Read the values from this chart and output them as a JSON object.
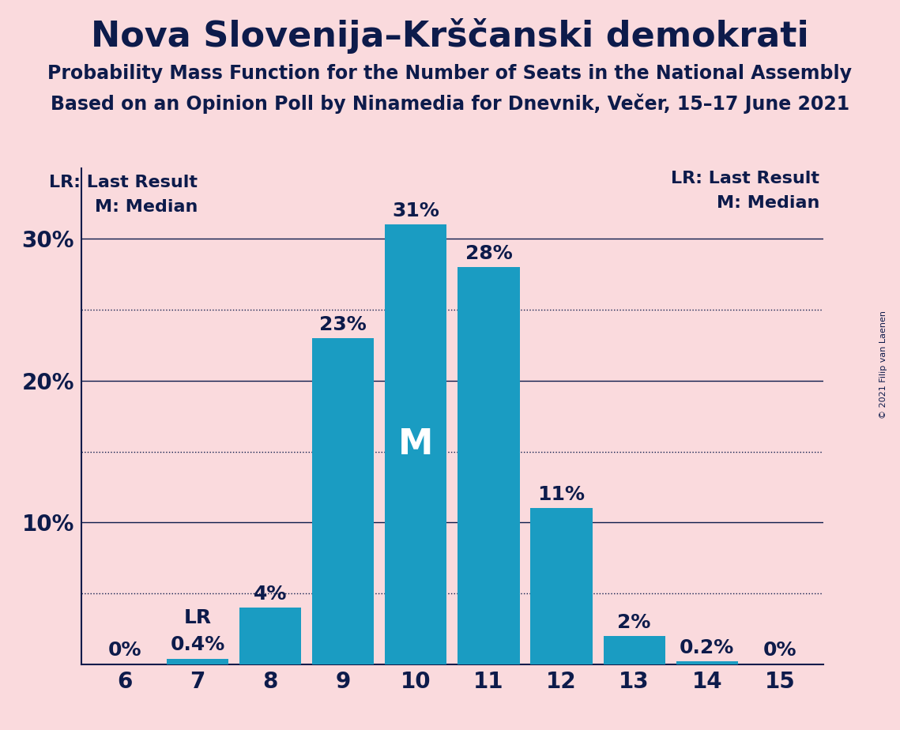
{
  "title": "Nova Slovenija–Krščanski demokrati",
  "subtitle1": "Probability Mass Function for the Number of Seats in the National Assembly",
  "subtitle2": "Based on an Opinion Poll by Ninamedia for Dnevnik, Večer, 15–17 June 2021",
  "copyright": "© 2021 Filip van Laenen",
  "categories": [
    6,
    7,
    8,
    9,
    10,
    11,
    12,
    13,
    14,
    15
  ],
  "values": [
    0.0,
    0.4,
    4.0,
    23.0,
    31.0,
    28.0,
    11.0,
    2.0,
    0.2,
    0.0
  ],
  "bar_color": "#1a9cc2",
  "background_color": "#fadadd",
  "bar_labels": [
    "0%",
    "0.4%",
    "4%",
    "23%",
    "31%",
    "28%",
    "11%",
    "2%",
    "0.2%",
    "0%"
  ],
  "median_bar": 10,
  "lr_bar": 7,
  "ylim": [
    0,
    35
  ],
  "yticks": [
    10,
    20,
    30
  ],
  "ytick_labels": [
    "10%",
    "20%",
    "30%"
  ],
  "dotted_lines": [
    5,
    15,
    25
  ],
  "solid_lines": [
    10,
    20,
    30
  ],
  "title_fontsize": 32,
  "subtitle_fontsize": 17,
  "axis_label_fontsize": 20,
  "bar_label_fontsize": 18,
  "legend_fontsize": 16,
  "text_color": "#0d1b4b",
  "median_label_color": "#ffffff",
  "median_label_fontsize": 32
}
